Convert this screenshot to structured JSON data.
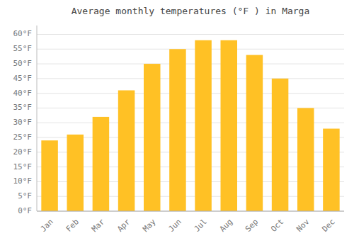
{
  "chart_data": {
    "type": "bar",
    "title": "Average monthly temperatures (°F ) in Marga",
    "categories": [
      "Jan",
      "Feb",
      "Mar",
      "Apr",
      "May",
      "Jun",
      "Jul",
      "Aug",
      "Sep",
      "Oct",
      "Nov",
      "Dec"
    ],
    "values": [
      24,
      26,
      32,
      41,
      50,
      55,
      58,
      58,
      53,
      45,
      35,
      28
    ],
    "color": "#FFC125",
    "ylim": [
      0,
      63
    ],
    "yticks": [
      {
        "value": 0,
        "label": "0°F"
      },
      {
        "value": 5,
        "label": "5°F"
      },
      {
        "value": 10,
        "label": "10°F"
      },
      {
        "value": 15,
        "label": "15°F"
      },
      {
        "value": 20,
        "label": "20°F"
      },
      {
        "value": 25,
        "label": "25°F"
      },
      {
        "value": 30,
        "label": "30°F"
      },
      {
        "value": 35,
        "label": "35°F"
      },
      {
        "value": 40,
        "label": "40°F"
      },
      {
        "value": 45,
        "label": "45°F"
      },
      {
        "value": 50,
        "label": "50°F"
      },
      {
        "value": 55,
        "label": "55°F"
      },
      {
        "value": 60,
        "label": "60°F"
      }
    ],
    "grid": true
  }
}
